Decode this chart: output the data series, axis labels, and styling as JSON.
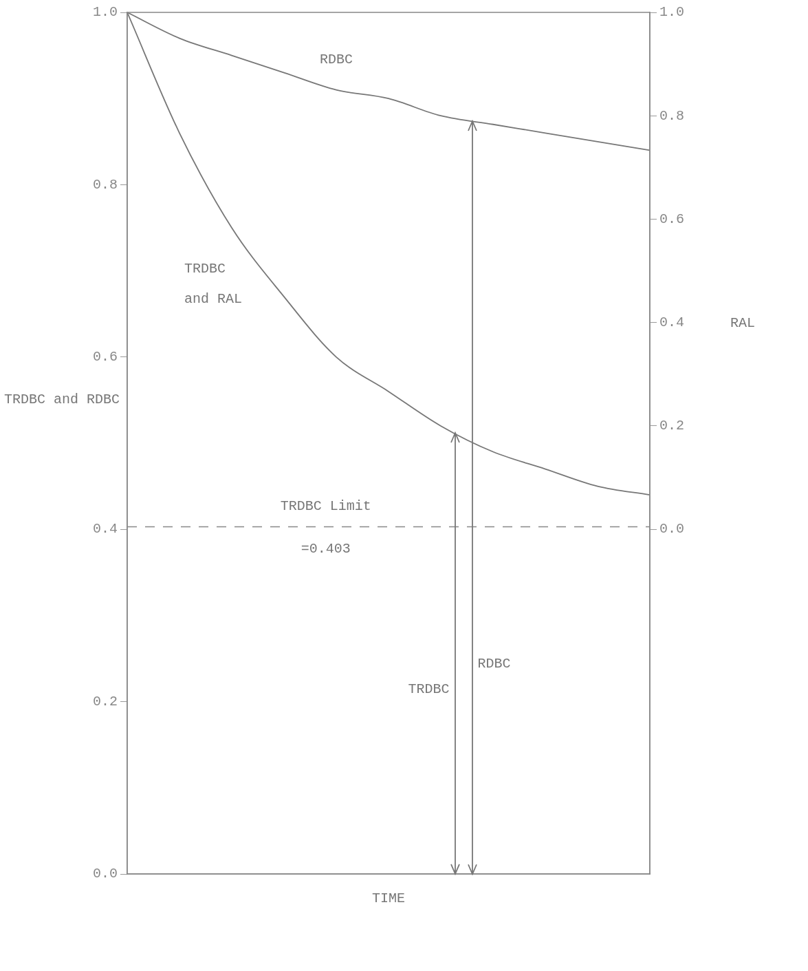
{
  "chart_data": {
    "type": "line",
    "xlabel": "TIME",
    "ylabel": "TRDBC and RDBC",
    "y2label": "RAL",
    "categories": [
      null,
      null,
      null,
      null,
      null,
      null,
      null,
      null,
      null,
      null,
      null
    ],
    "series": [
      {
        "name": "RDBC",
        "color": "#777777",
        "values": [
          1.0,
          0.97,
          0.95,
          0.93,
          0.91,
          0.9,
          0.88,
          0.87,
          0.86,
          0.85,
          0.84
        ]
      },
      {
        "name": "TRDBC and RAL",
        "color": "#777777",
        "values": [
          1.0,
          0.86,
          0.75,
          0.67,
          0.6,
          0.56,
          0.52,
          0.49,
          0.47,
          0.45,
          0.44
        ]
      }
    ],
    "ylim": [
      0,
      1
    ],
    "yticks": [
      {
        "value": 0,
        "label": "0.0"
      },
      0.2,
      0.4,
      0.6,
      0.8,
      {
        "value": 1,
        "label": "1.0"
      }
    ],
    "y2lim": [
      -0.667,
      1
    ],
    "y2ticks": [
      {
        "value": 0,
        "label": "0.0"
      },
      0.2,
      0.4,
      0.6,
      0.8,
      {
        "value": 1,
        "label": "1.0"
      }
    ],
    "ref_lines": [
      {
        "axis": "y",
        "value": 0.403,
        "label": "TRDBC Limit =0.403",
        "line_style": "dashed",
        "color": "#888888"
      }
    ],
    "annotations": [
      "TRDBC",
      "RDBC"
    ],
    "grid": false,
    "legend": false,
    "marker": "none",
    "line_style": "solid"
  }
}
